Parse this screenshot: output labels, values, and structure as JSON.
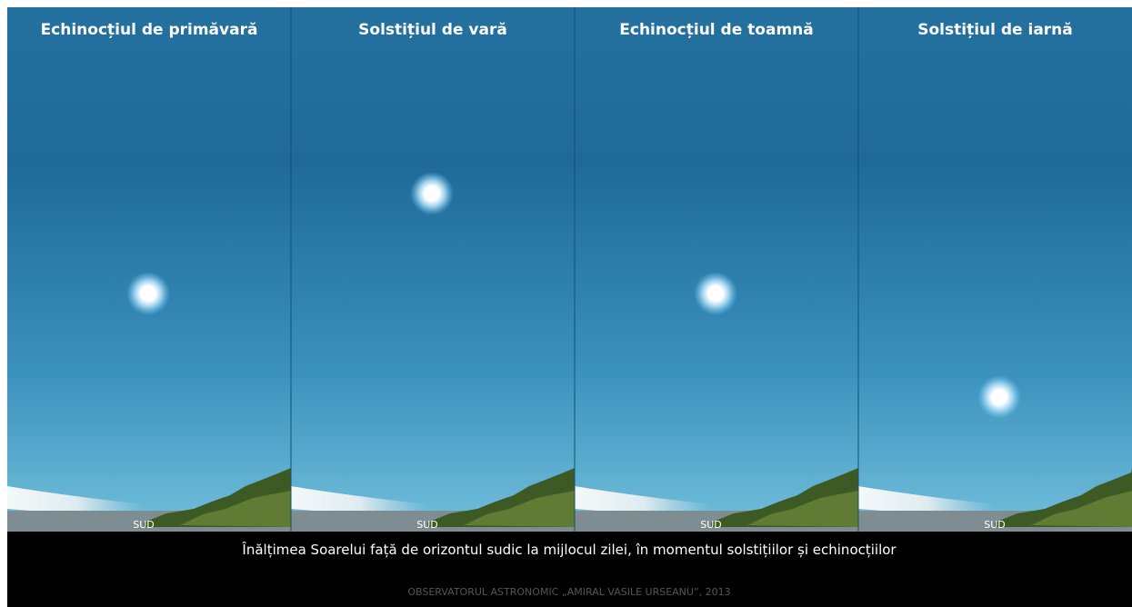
{
  "panels": [
    {
      "title": "Echinocțiul de primăvară",
      "direction": "SUD"
    },
    {
      "title": "Solstițiul de vară",
      "direction": "SUD"
    },
    {
      "title": "Echinocțiul de toamnă",
      "direction": "SUD"
    },
    {
      "title": "Solstițiul de iarnă",
      "direction": "SUD"
    }
  ],
  "caption": "Înălțimea Soarelui față de orizontul sudic la mijlocul zilei, în momentul solstițiilor și echinocțiilor",
  "credit": "OBSERVATORUL ASTRONOMIC „AMIRAL VASILE URSEANU”, 2013"
}
